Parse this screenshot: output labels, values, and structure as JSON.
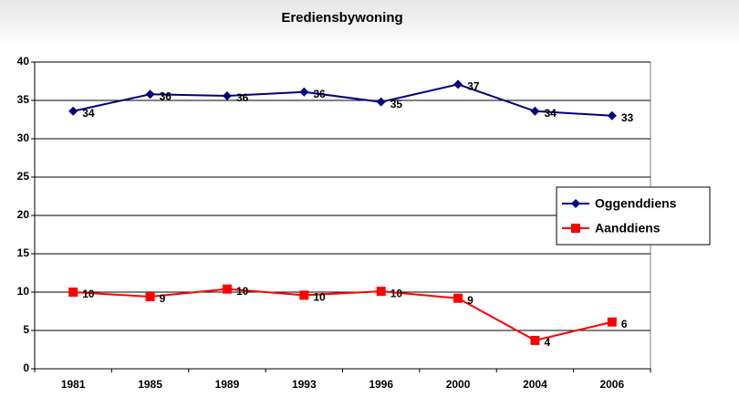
{
  "chart_data": {
    "type": "line",
    "title": "Erediensbywoning",
    "categories": [
      "1981",
      "1985",
      "1989",
      "1993",
      "1996",
      "2000",
      "2004",
      "2006"
    ],
    "series": [
      {
        "name": "Oggenddiens",
        "color": "#000080",
        "marker": "diamond",
        "values": [
          33.6,
          35.8,
          35.6,
          36.1,
          34.8,
          37.1,
          33.6,
          33.0
        ],
        "value_labels": [
          "34",
          "36",
          "36",
          "36",
          "35",
          "37",
          "34",
          "33"
        ]
      },
      {
        "name": "Aanddiens",
        "color": "#ff0000",
        "marker": "square",
        "values": [
          10.0,
          9.4,
          10.4,
          9.6,
          10.1,
          9.2,
          3.7,
          6.1
        ],
        "value_labels": [
          "10",
          "9",
          "10",
          "10",
          "10",
          "9",
          "4",
          "6"
        ]
      }
    ],
    "ylim": [
      0,
      40
    ],
    "yticks": [
      0,
      5,
      10,
      15,
      20,
      25,
      30,
      35,
      40
    ],
    "grid": true,
    "legend": "right"
  }
}
